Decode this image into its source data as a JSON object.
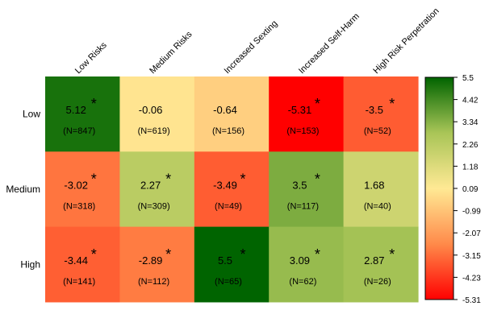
{
  "chart_data": {
    "type": "heatmap",
    "columns": [
      "Low Risks",
      "Medium Risks",
      "Increased Sexting",
      "Increased Self-Harm",
      "High Risk Perpetration"
    ],
    "rows": [
      "Low",
      "Medium",
      "High"
    ],
    "cells": [
      [
        {
          "value": "5.12",
          "n": "(N=847)",
          "sig": true
        },
        {
          "value": "-0.06",
          "n": "(N=619)",
          "sig": false
        },
        {
          "value": "-0.64",
          "n": "(N=156)",
          "sig": false
        },
        {
          "value": "-5.31",
          "n": "(N=153)",
          "sig": true
        },
        {
          "value": "-3.5",
          "n": "(N=52)",
          "sig": true
        }
      ],
      [
        {
          "value": "-3.02",
          "n": "(N=318)",
          "sig": true
        },
        {
          "value": "2.27",
          "n": "(N=309)",
          "sig": true
        },
        {
          "value": "-3.49",
          "n": "(N=49)",
          "sig": true
        },
        {
          "value": "3.5",
          "n": "(N=117)",
          "sig": true
        },
        {
          "value": "1.68",
          "n": "(N=40)",
          "sig": false
        }
      ],
      [
        {
          "value": "-3.44",
          "n": "(N=141)",
          "sig": true
        },
        {
          "value": "-2.89",
          "n": "(N=112)",
          "sig": true
        },
        {
          "value": "5.5",
          "n": "(N=65)",
          "sig": true
        },
        {
          "value": "3.09",
          "n": "(N=62)",
          "sig": true
        },
        {
          "value": "2.87",
          "n": "(N=26)",
          "sig": true
        }
      ]
    ],
    "significance_marker": "*",
    "colorbar": {
      "ticks": [
        "5.5",
        "4.42",
        "3.34",
        "2.26",
        "1.18",
        "0.09",
        "-0.99",
        "-2.07",
        "-3.15",
        "-4.23",
        "-5.31"
      ],
      "range": [
        -5.31,
        5.5
      ],
      "colors": [
        "#ff0000",
        "#ff8a4a",
        "#ffe994",
        "#a9c557",
        "#006400"
      ]
    }
  }
}
